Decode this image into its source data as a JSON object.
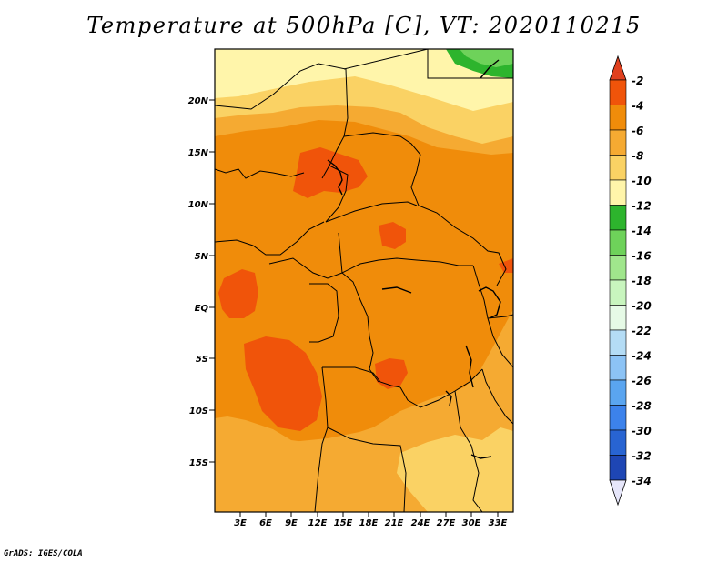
{
  "title": "Temperature at 500hPa [C], VT: 2020110215",
  "credit": "GrADS: IGES/COLA",
  "lat_labels": [
    "20N",
    "15N",
    "10N",
    "5N",
    "EQ",
    "5S",
    "10S",
    "15S"
  ],
  "lon_labels": [
    "3E",
    "6E",
    "9E",
    "12E",
    "15E",
    "18E",
    "21E",
    "24E",
    "27E",
    "30E",
    "33E"
  ],
  "colorbar": {
    "labels": [
      "-2",
      "-4",
      "-6",
      "-8",
      "-10",
      "-12",
      "-14",
      "-16",
      "-18",
      "-20",
      "-22",
      "-24",
      "-26",
      "-28",
      "-30",
      "-32",
      "-34"
    ],
    "colors": [
      "#f0540a",
      "#f08c0a",
      "#f5aa32",
      "#fad264",
      "#fff5aa",
      "#2db42d",
      "#6ed25a",
      "#a0e68c",
      "#c8f5be",
      "#e6fae6",
      "#b4dcf5",
      "#8cc3f5",
      "#5aa5f0",
      "#3c82eb",
      "#2864d2",
      "#1e46b4",
      "#0f1e78"
    ],
    "top_arrow_color": "#e0401e",
    "bottom_arrow_color": "#e6e6fa"
  },
  "field_colors": {
    "m2": "#f0540a",
    "m4": "#f08c0a",
    "m6": "#f5aa32",
    "m8": "#fad264",
    "m10": "#fff5aa",
    "m12": "#2db42d",
    "m14": "#6ed25a"
  }
}
